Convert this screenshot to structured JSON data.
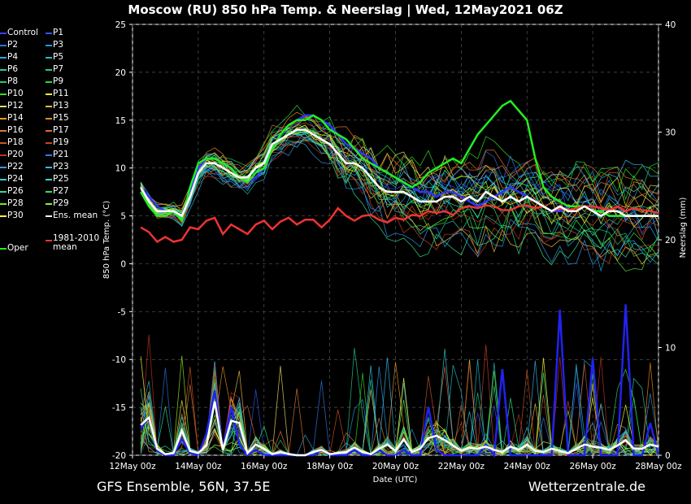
{
  "title": "Moscow  (RU)  850 hPa Temp. & Neerslag | Wed, 12May2021 06Z",
  "footer_left": "GFS Ensemble, 56N, 37.5E",
  "footer_right": "Wetterzentrale.de",
  "legend": [
    {
      "label": "Control",
      "color": "#4040ff"
    },
    {
      "label": "P1",
      "color": "#3355ee"
    },
    {
      "label": "P2",
      "color": "#2277dd"
    },
    {
      "label": "P3",
      "color": "#2299dd"
    },
    {
      "label": "P4",
      "color": "#22aadd"
    },
    {
      "label": "P5",
      "color": "#22bbcc"
    },
    {
      "label": "P6",
      "color": "#22ccaa"
    },
    {
      "label": "P7",
      "color": "#22cc88"
    },
    {
      "label": "P8",
      "color": "#22cc66"
    },
    {
      "label": "P9",
      "color": "#22dd44"
    },
    {
      "label": "P10",
      "color": "#33dd22"
    },
    {
      "label": "P11",
      "color": "#eeee33"
    },
    {
      "label": "P12",
      "color": "#eedd66"
    },
    {
      "label": "P13",
      "color": "#eebb44"
    },
    {
      "label": "P14",
      "color": "#ee9922"
    },
    {
      "label": "P15",
      "color": "#ee8822"
    },
    {
      "label": "P16",
      "color": "#dd7733"
    },
    {
      "label": "P17",
      "color": "#dd6633"
    },
    {
      "label": "P18",
      "color": "#cc5522"
    },
    {
      "label": "P19",
      "color": "#cc4422"
    },
    {
      "label": "P20",
      "color": "#bb3322"
    },
    {
      "label": "P21",
      "color": "#3377ee"
    },
    {
      "label": "P22",
      "color": "#3399ee"
    },
    {
      "label": "P23",
      "color": "#33bbee"
    },
    {
      "label": "P24",
      "color": "#33ccdd"
    },
    {
      "label": "P25",
      "color": "#33ddbb"
    },
    {
      "label": "P26",
      "color": "#33dd88"
    },
    {
      "label": "P27",
      "color": "#33dd55"
    },
    {
      "label": "P28",
      "color": "#66ee33"
    },
    {
      "label": "P29",
      "color": "#99ee22"
    },
    {
      "label": "P30",
      "color": "#ffff33"
    },
    {
      "label": "Ens. mean",
      "color": "#ffffff"
    },
    {
      "label": "Oper",
      "color": "#22ee22"
    },
    {
      "label": "1981-2010 mean",
      "color": "#ee3333"
    }
  ],
  "chart_data": {
    "type": "line",
    "xlabel": "Date (UTC)",
    "ylabel": "850 hPa Temp. (°C)",
    "y2label": "Neerslag (mm)",
    "ylim": [
      -20,
      25
    ],
    "y2lim": [
      0,
      40
    ],
    "yticks": [
      "25",
      "20",
      "15",
      "10",
      "5",
      "0",
      "-5",
      "-10",
      "-15",
      "-20"
    ],
    "y2ticks": [
      "40",
      "30",
      "20",
      "10",
      "0"
    ],
    "xticks": [
      "12May 00z",
      "14May 00z",
      "16May 00z",
      "18May 00z",
      "20May 00z",
      "22May 00z",
      "24May 00z",
      "26May 00z",
      "28May 00z"
    ],
    "x_hours": [
      6,
      12,
      18,
      24,
      30,
      36,
      42,
      48,
      54,
      60,
      66,
      72,
      78,
      84,
      90,
      96,
      102,
      108,
      114,
      120,
      126,
      132,
      138,
      144,
      150,
      156,
      162,
      168,
      174,
      180,
      186,
      192,
      198,
      204,
      210,
      216,
      222,
      228,
      234,
      240,
      246,
      252,
      258,
      264,
      270,
      276,
      282,
      288,
      294,
      300,
      306,
      312,
      318,
      324,
      330,
      336,
      342,
      348,
      354,
      360,
      366,
      372,
      378,
      384
    ],
    "ens_mean_temp": [
      8.0,
      6.5,
      5.5,
      5.5,
      5.5,
      5.0,
      7.0,
      9.5,
      10.5,
      10.5,
      10.0,
      9.5,
      9.0,
      9.0,
      10.0,
      10.5,
      12.5,
      13.0,
      13.5,
      14.0,
      14.0,
      13.5,
      13.0,
      12.5,
      11.5,
      10.5,
      10.5,
      10.0,
      9.0,
      8.0,
      7.5,
      7.5,
      7.5,
      7.0,
      6.5,
      6.5,
      6.5,
      7.0,
      7.0,
      6.5,
      7.0,
      6.5,
      7.5,
      7.0,
      6.5,
      7.0,
      6.5,
      7.0,
      6.5,
      6.0,
      5.5,
      6.0,
      5.5,
      5.5,
      6.0,
      5.5,
      5.0,
      5.5,
      5.5,
      5.0,
      5.0,
      5.0,
      5.0,
      5.0
    ],
    "oper_temp": [
      7.5,
      6.0,
      5.0,
      5.0,
      5.5,
      4.5,
      8.0,
      10.5,
      11.0,
      11.0,
      10.5,
      10.0,
      9.0,
      8.5,
      9.5,
      10.0,
      12.0,
      13.5,
      14.5,
      15.0,
      15.0,
      15.5,
      15.0,
      14.0,
      13.5,
      13.0,
      12.0,
      11.0,
      10.5,
      10.0,
      9.5,
      9.0,
      8.5,
      8.0,
      8.5,
      9.5,
      10.0,
      10.5,
      11.0,
      10.5,
      12.0,
      13.5,
      14.5,
      15.5,
      16.5,
      17.0,
      16.0,
      15.0,
      11.0,
      8.0,
      7.0,
      6.5,
      6.0,
      6.0,
      6.0,
      5.5,
      5.5,
      5.0,
      5.0,
      5.0,
      5.0,
      5.0,
      5.0,
      5.0
    ],
    "control_temp": [
      8.0,
      7.0,
      6.0,
      5.5,
      5.5,
      5.0,
      7.5,
      10.0,
      11.0,
      11.0,
      10.5,
      10.0,
      9.0,
      8.5,
      9.0,
      10.0,
      12.0,
      13.5,
      14.5,
      15.0,
      15.5,
      15.5,
      15.0,
      14.5,
      13.5,
      12.5,
      12.0,
      11.5,
      11.0,
      10.0,
      9.5,
      9.0,
      8.5,
      8.0,
      7.5,
      7.5,
      7.0,
      7.5,
      7.5,
      7.0,
      6.5,
      6.0,
      6.5,
      7.0,
      7.5,
      8.0,
      7.5,
      7.0,
      6.5,
      6.0,
      5.5,
      5.5,
      6.0,
      6.0,
      6.0,
      5.5,
      5.5,
      5.0,
      5.0,
      5.0,
      5.0,
      5.0,
      5.0,
      5.0
    ],
    "climate_mean_temp": [
      3.8,
      3.3,
      2.3,
      2.8,
      2.3,
      2.5,
      3.8,
      3.6,
      4.5,
      4.8,
      3.1,
      4.1,
      3.6,
      3.1,
      4.1,
      4.5,
      3.6,
      4.4,
      4.8,
      4.1,
      4.6,
      4.6,
      3.8,
      4.6,
      5.8,
      5.0,
      4.5,
      5.0,
      5.1,
      4.6,
      4.3,
      4.8,
      4.6,
      5.1,
      5.0,
      5.5,
      5.3,
      5.5,
      5.1,
      5.8,
      6.0,
      5.8,
      6.1,
      6.0,
      5.6,
      5.6,
      6.0,
      6.1,
      5.8,
      6.0,
      5.5,
      5.8,
      5.6,
      5.8,
      6.0,
      6.0,
      5.8,
      5.6,
      6.0,
      5.5,
      5.8,
      5.6,
      5.5,
      5.3
    ],
    "ens_mean_precip": [
      2.8,
      3.5,
      0.6,
      0.1,
      0.2,
      2.3,
      0.4,
      0.2,
      0.9,
      5.0,
      0.5,
      3.2,
      3.0,
      0.2,
      1.0,
      0.6,
      0.1,
      0.3,
      0.1,
      0.0,
      0.0,
      0.3,
      0.5,
      0.1,
      0.2,
      0.3,
      0.7,
      0.3,
      0.1,
      0.6,
      1.0,
      0.4,
      1.5,
      0.3,
      0.6,
      1.6,
      1.8,
      1.4,
      0.9,
      0.4,
      0.7,
      0.6,
      0.8,
      0.5,
      0.3,
      0.8,
      0.5,
      1.0,
      0.4,
      0.3,
      0.6,
      0.4,
      0.2,
      0.6,
      1.0,
      0.8,
      0.7,
      0.5,
      0.9,
      1.4,
      0.6,
      0.6,
      1.0,
      0.8
    ],
    "control_precip": [
      2.5,
      3.5,
      0.4,
      0.0,
      0.0,
      1.5,
      0.2,
      0.0,
      2.0,
      6.0,
      0.5,
      4.5,
      1.0,
      0.0,
      0.5,
      0.0,
      0.0,
      0.0,
      0.0,
      0.0,
      0.0,
      0.0,
      0.5,
      0.0,
      0.0,
      0.0,
      0.5,
      0.0,
      0.0,
      0.5,
      0.0,
      0.0,
      0.5,
      0.0,
      0.0,
      4.5,
      0.5,
      0.0,
      0.0,
      0.0,
      0.0,
      0.0,
      1.0,
      0.0,
      8.0,
      0.0,
      0.0,
      0.0,
      0.0,
      0.0,
      0.0,
      13.5,
      0.0,
      0.0,
      0.0,
      9.0,
      0.0,
      0.0,
      0.0,
      14.0,
      0.0,
      0.0,
      3.0,
      0.0
    ]
  }
}
